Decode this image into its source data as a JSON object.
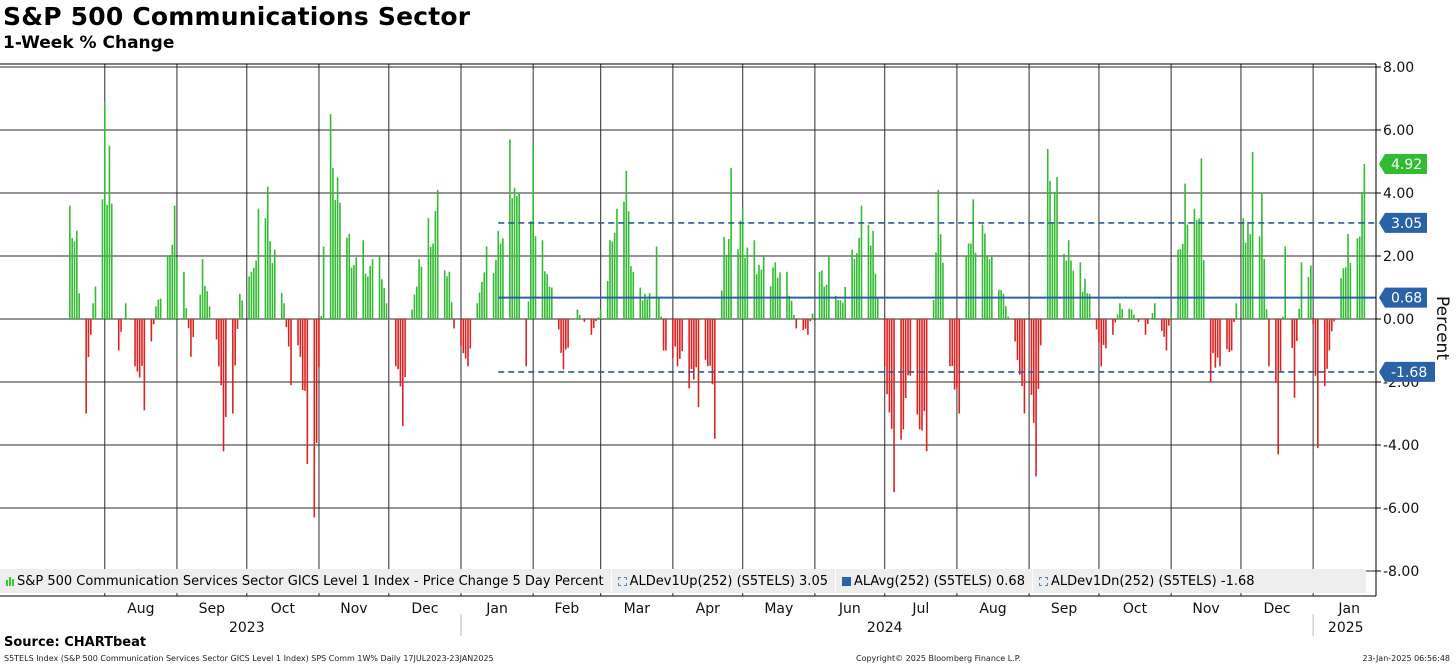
{
  "header": {
    "title": "S&P 500 Communications Sector",
    "subtitle": "1-Week % Change"
  },
  "chart_data": {
    "type": "bar",
    "title": "S&P 500 Communications Sector",
    "subtitle": "1-Week % Change",
    "ylabel": "Percent",
    "ylim": [
      -8,
      8
    ],
    "yticks": [
      8,
      6,
      4,
      2,
      0,
      -2,
      -4,
      -6,
      -8
    ],
    "ytick_labels": [
      "8.00",
      "6.00",
      "4.00",
      "2.00",
      "0.00",
      "-2.00",
      "-4.00",
      "-6.00",
      "-8.00"
    ],
    "date_range": [
      "2023-07-17",
      "2025-01-23"
    ],
    "months": [
      {
        "label": "Aug",
        "date": "2023-08-01"
      },
      {
        "label": "Sep",
        "date": "2023-09-01"
      },
      {
        "label": "Oct",
        "date": "2023-10-01"
      },
      {
        "label": "Nov",
        "date": "2023-11-01"
      },
      {
        "label": "Dec",
        "date": "2023-12-01"
      },
      {
        "label": "Jan",
        "date": "2024-01-01"
      },
      {
        "label": "Feb",
        "date": "2024-02-01"
      },
      {
        "label": "Mar",
        "date": "2024-03-01"
      },
      {
        "label": "Apr",
        "date": "2024-04-01"
      },
      {
        "label": "May",
        "date": "2024-05-01"
      },
      {
        "label": "Jun",
        "date": "2024-06-01"
      },
      {
        "label": "Jul",
        "date": "2024-07-01"
      },
      {
        "label": "Aug",
        "date": "2024-08-01"
      },
      {
        "label": "Sep",
        "date": "2024-09-01"
      },
      {
        "label": "Oct",
        "date": "2024-10-01"
      },
      {
        "label": "Nov",
        "date": "2024-11-01"
      },
      {
        "label": "Dec",
        "date": "2024-12-01"
      },
      {
        "label": "Jan",
        "date": "2025-01-01"
      }
    ],
    "years": [
      {
        "label": "2023",
        "date": "2023-10-01"
      },
      {
        "label": "2024",
        "date": "2024-07-01"
      },
      {
        "label": "2025",
        "date": "2025-01-01"
      }
    ],
    "year_separators": [
      "2024-01-01",
      "2025-01-01"
    ],
    "series": [
      {
        "name": "S&P 500 Communication Services Sector GICS Level 1 Index - Price Change 5 Day Percent",
        "positive_color": "#33bb33",
        "negative_color": "#dd2222",
        "anchors": [
          [
            "2023-07-17",
            3.6
          ],
          [
            "2023-07-20",
            2.8
          ],
          [
            "2023-07-24",
            -3.0
          ],
          [
            "2023-07-27",
            0.5
          ],
          [
            "2023-07-31",
            3.8
          ],
          [
            "2023-08-01",
            6.9
          ],
          [
            "2023-08-03",
            5.5
          ],
          [
            "2023-08-07",
            -1.0
          ],
          [
            "2023-08-10",
            0.5
          ],
          [
            "2023-08-14",
            -1.5
          ],
          [
            "2023-08-18",
            -2.9
          ],
          [
            "2023-08-23",
            0.4
          ],
          [
            "2023-08-28",
            2.0
          ],
          [
            "2023-08-31",
            3.6
          ],
          [
            "2023-09-04",
            1.5
          ],
          [
            "2023-09-07",
            -1.2
          ],
          [
            "2023-09-12",
            1.9
          ],
          [
            "2023-09-15",
            0.4
          ],
          [
            "2023-09-19",
            -1.5
          ],
          [
            "2023-09-21",
            -4.2
          ],
          [
            "2023-09-25",
            -3.0
          ],
          [
            "2023-09-28",
            0.8
          ],
          [
            "2023-10-03",
            1.5
          ],
          [
            "2023-10-06",
            3.5
          ],
          [
            "2023-10-10",
            4.2
          ],
          [
            "2023-10-13",
            2.2
          ],
          [
            "2023-10-17",
            0.5
          ],
          [
            "2023-10-20",
            -2.1
          ],
          [
            "2023-10-24",
            -1.2
          ],
          [
            "2023-10-27",
            -4.6
          ],
          [
            "2023-10-30",
            -6.3
          ],
          [
            "2023-11-03",
            2.3
          ],
          [
            "2023-11-06",
            6.5
          ],
          [
            "2023-11-09",
            4.5
          ],
          [
            "2023-11-14",
            2.7
          ],
          [
            "2023-11-20",
            2.5
          ],
          [
            "2023-11-27",
            2.0
          ],
          [
            "2023-11-30",
            0.5
          ],
          [
            "2023-12-04",
            -1.5
          ],
          [
            "2023-12-07",
            -3.4
          ],
          [
            "2023-12-11",
            0.3
          ],
          [
            "2023-12-14",
            1.9
          ],
          [
            "2023-12-18",
            3.2
          ],
          [
            "2023-12-22",
            4.1
          ],
          [
            "2023-12-27",
            1.5
          ],
          [
            "2023-12-29",
            -0.3
          ],
          [
            "2024-01-04",
            -1.5
          ],
          [
            "2024-01-08",
            0.5
          ],
          [
            "2024-01-12",
            2.3
          ],
          [
            "2024-01-17",
            2.8
          ],
          [
            "2024-01-22",
            5.7
          ],
          [
            "2024-01-26",
            4.0
          ],
          [
            "2024-01-29",
            -1.5
          ],
          [
            "2024-02-01",
            5.5
          ],
          [
            "2024-02-05",
            2.5
          ],
          [
            "2024-02-09",
            1.0
          ],
          [
            "2024-02-14",
            -1.6
          ],
          [
            "2024-02-20",
            0.3
          ],
          [
            "2024-02-26",
            -0.5
          ],
          [
            "2024-03-01",
            0.3
          ],
          [
            "2024-03-05",
            2.5
          ],
          [
            "2024-03-08",
            3.5
          ],
          [
            "2024-03-12",
            4.7
          ],
          [
            "2024-03-15",
            1.5
          ],
          [
            "2024-03-20",
            0.8
          ],
          [
            "2024-03-25",
            2.3
          ],
          [
            "2024-03-28",
            -1.0
          ],
          [
            "2024-04-03",
            -1.5
          ],
          [
            "2024-04-08",
            -2.2
          ],
          [
            "2024-04-12",
            -2.8
          ],
          [
            "2024-04-16",
            -1.5
          ],
          [
            "2024-04-19",
            -3.8
          ],
          [
            "2024-04-23",
            2.6
          ],
          [
            "2024-04-26",
            4.8
          ],
          [
            "2024-05-01",
            3.5
          ],
          [
            "2024-05-06",
            2.5
          ],
          [
            "2024-05-10",
            2.0
          ],
          [
            "2024-05-15",
            1.8
          ],
          [
            "2024-05-20",
            1.5
          ],
          [
            "2024-05-24",
            -0.3
          ],
          [
            "2024-05-29",
            -0.5
          ],
          [
            "2024-06-03",
            1.5
          ],
          [
            "2024-06-07",
            2.0
          ],
          [
            "2024-06-12",
            0.6
          ],
          [
            "2024-06-17",
            2.2
          ],
          [
            "2024-06-21",
            3.6
          ],
          [
            "2024-06-26",
            2.8
          ],
          [
            "2024-07-01",
            -1.5
          ],
          [
            "2024-07-05",
            -5.5
          ],
          [
            "2024-07-09",
            -3.5
          ],
          [
            "2024-07-12",
            -1.8
          ],
          [
            "2024-07-16",
            -3.5
          ],
          [
            "2024-07-19",
            -4.2
          ],
          [
            "2024-07-24",
            4.1
          ],
          [
            "2024-07-29",
            -1.5
          ],
          [
            "2024-08-02",
            -3.0
          ],
          [
            "2024-08-05",
            2.0
          ],
          [
            "2024-08-08",
            3.8
          ],
          [
            "2024-08-12",
            3.0
          ],
          [
            "2024-08-16",
            2.0
          ],
          [
            "2024-08-21",
            0.8
          ],
          [
            "2024-08-27",
            -1.3
          ],
          [
            "2024-08-30",
            -3.0
          ],
          [
            "2024-09-04",
            -5.0
          ],
          [
            "2024-09-09",
            5.4
          ],
          [
            "2024-09-13",
            4.5
          ],
          [
            "2024-09-18",
            2.5
          ],
          [
            "2024-09-23",
            1.8
          ],
          [
            "2024-09-27",
            0.8
          ],
          [
            "2024-10-02",
            -1.5
          ],
          [
            "2024-10-07",
            -0.5
          ],
          [
            "2024-10-10",
            0.5
          ],
          [
            "2024-10-15",
            0.3
          ],
          [
            "2024-10-21",
            -0.5
          ],
          [
            "2024-10-25",
            0.5
          ],
          [
            "2024-10-30",
            -1.0
          ],
          [
            "2024-11-04",
            2.2
          ],
          [
            "2024-11-07",
            4.3
          ],
          [
            "2024-11-11",
            3.5
          ],
          [
            "2024-11-14",
            5.1
          ],
          [
            "2024-11-18",
            -2.0
          ],
          [
            "2024-11-22",
            -1.5
          ],
          [
            "2024-11-27",
            -1.0
          ],
          [
            "2024-12-02",
            3.2
          ],
          [
            "2024-12-06",
            5.3
          ],
          [
            "2024-12-10",
            4.0
          ],
          [
            "2024-12-13",
            -1.5
          ],
          [
            "2024-12-17",
            -4.3
          ],
          [
            "2024-12-20",
            2.3
          ],
          [
            "2024-12-24",
            -2.5
          ],
          [
            "2024-12-27",
            1.8
          ],
          [
            "2024-12-31",
            1.7
          ],
          [
            "2025-01-03",
            -4.1
          ],
          [
            "2025-01-08",
            -1.0
          ],
          [
            "2025-01-13",
            1.3
          ],
          [
            "2025-01-16",
            2.7
          ],
          [
            "2025-01-23",
            4.92
          ]
        ]
      },
      {
        "name": "ALDev1Up(252) (S5TELS)",
        "value": 3.05,
        "style": "dashed",
        "color": "#2a5a9a",
        "start": "2024-01-17"
      },
      {
        "name": "ALAvg(252) (S5TELS)",
        "value": 0.68,
        "style": "solid",
        "color": "#2a62a8",
        "start": "2024-01-17"
      },
      {
        "name": "ALDev1Dn(252) (S5TELS)",
        "value": -1.68,
        "style": "dashed",
        "color": "#2a5a9a",
        "start": "2024-01-17"
      }
    ],
    "value_tags": [
      {
        "label": "4.92",
        "value": 4.92,
        "color": "#33bb33"
      },
      {
        "label": "3.05",
        "value": 3.05,
        "color": "#2a62a8"
      },
      {
        "label": "0.68",
        "value": 0.68,
        "color": "#2a62a8"
      },
      {
        "label": "-1.68",
        "value": -1.68,
        "color": "#2a62a8"
      }
    ]
  },
  "legend": {
    "items": [
      {
        "label": "S&P 500 Communication Services Sector GICS Level 1 Index - Price Change 5 Day Percent",
        "swatch": "bars"
      },
      {
        "label": "ALDev1Up(252) (S5TELS) 3.05",
        "swatch": "dashed"
      },
      {
        "label": "ALAvg(252) (S5TELS) 0.68",
        "swatch": "solid"
      },
      {
        "label": "ALDev1Dn(252) (S5TELS) -1.68",
        "swatch": "dashed"
      }
    ]
  },
  "footer": {
    "source": "Source: CHARTbeat",
    "description": "S5TELS Index (S&P 500 Communication Services Sector GICS Level 1 Index) SPS Comm 1W%  Daily 17JUL2023-23JAN2025",
    "copyright": "Copyright© 2025 Bloomberg Finance L.P.",
    "timestamp": "23-Jan-2025 06:56:48"
  }
}
